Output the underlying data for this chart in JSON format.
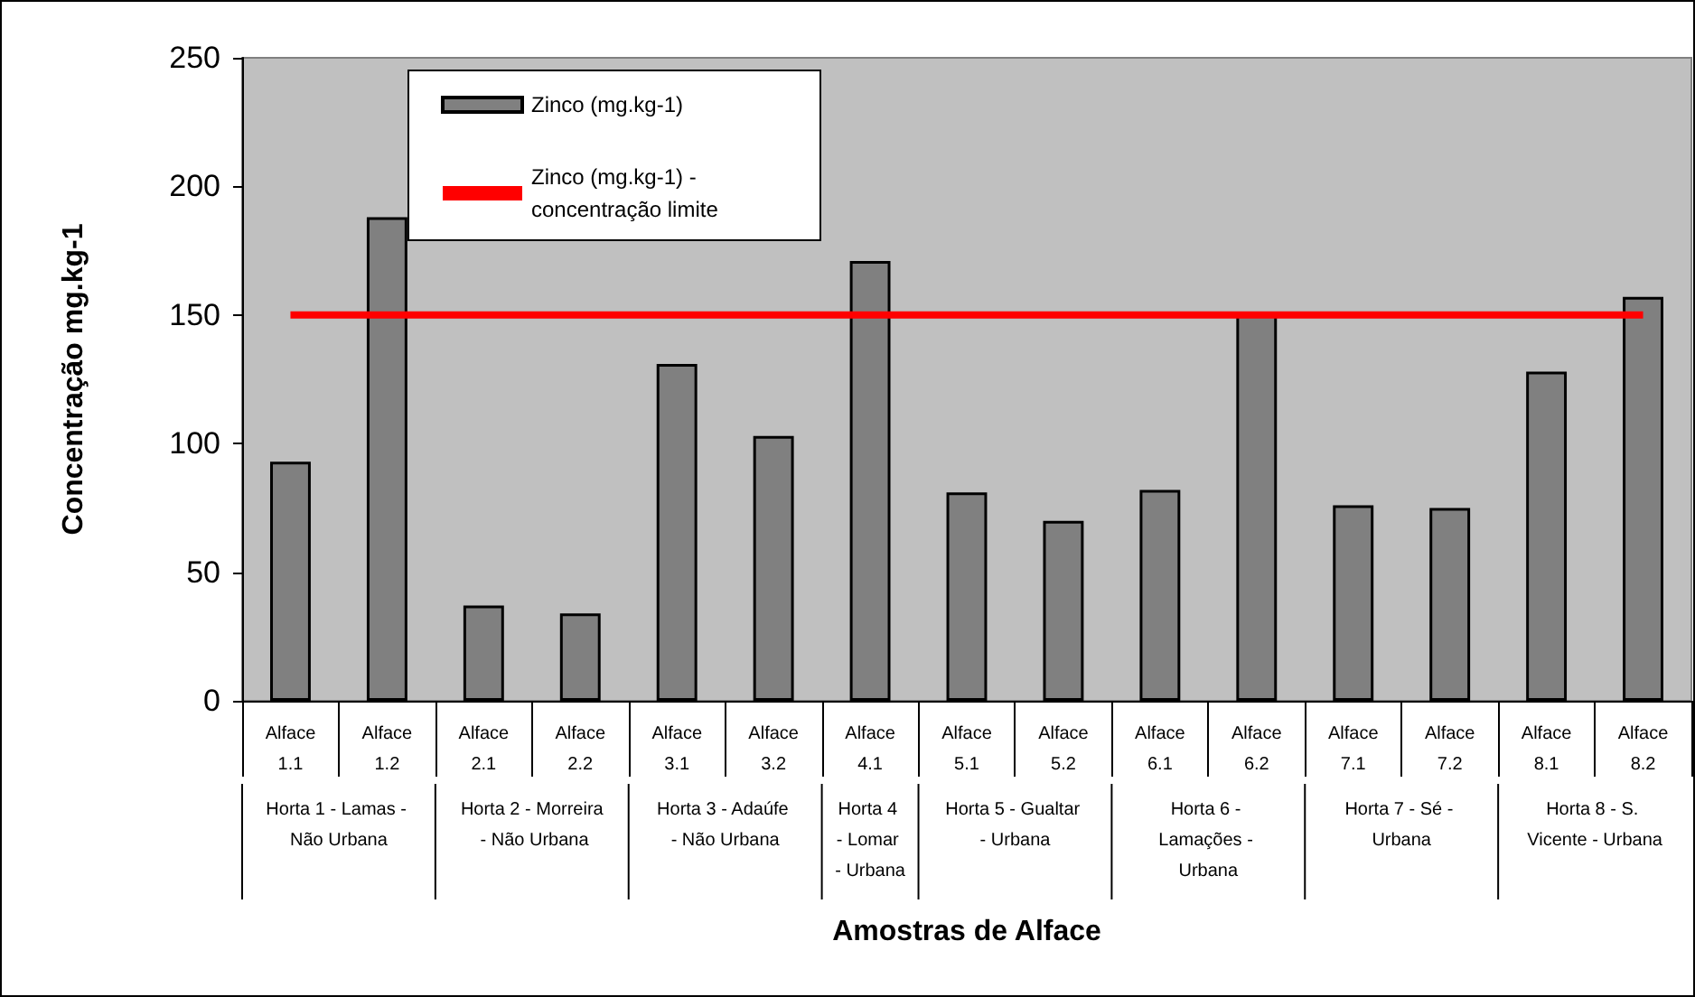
{
  "chart_data": {
    "type": "bar",
    "xlabel": "Amostras de Alface",
    "ylabel": "Concentração mg.kg-1",
    "categories": [
      "Alface 1.1",
      "Alface 1.2",
      "Alface 2.1",
      "Alface 2.2",
      "Alface 3.1",
      "Alface 3.2",
      "Alface 4.1",
      "Alface 5.1",
      "Alface 5.2",
      "Alface 6.1",
      "Alface 6.2",
      "Alface 7.1",
      "Alface 7.2",
      "Alface 8.1",
      "Alface 8.2"
    ],
    "series": [
      {
        "name": "Zinco (mg.kg-1)",
        "color": "#808080",
        "values": [
          93,
          188,
          37,
          34,
          131,
          103,
          171,
          81,
          70,
          82,
          151,
          76,
          75,
          128,
          157
        ]
      },
      {
        "name": "Zinco (mg.kg-1) - concentração limite",
        "type": "line",
        "color": "#ff0000",
        "values": [
          150,
          150,
          150,
          150,
          150,
          150,
          150,
          150,
          150,
          150,
          150,
          150,
          150,
          150,
          150
        ]
      }
    ],
    "annotations": [
      "Horta 1 - Lamas - Não Urbana",
      "Horta 2 - Morreira - Não Urbana",
      "Horta 3 - Adaúfe - Não Urbana",
      "Horta 4 - Lomar - Urbana",
      "Horta 5 - Gualtar - Urbana",
      "Horta 6 - Lamações - Urbana",
      "Horta 7 - Sé - Urbana",
      "Horta 8 - S. Vicente - Urbana"
    ],
    "ylim": [
      0,
      250
    ],
    "yticks": [
      0,
      50,
      100,
      150,
      200,
      250
    ],
    "grid": false,
    "legend": "top",
    "marker": "none"
  }
}
